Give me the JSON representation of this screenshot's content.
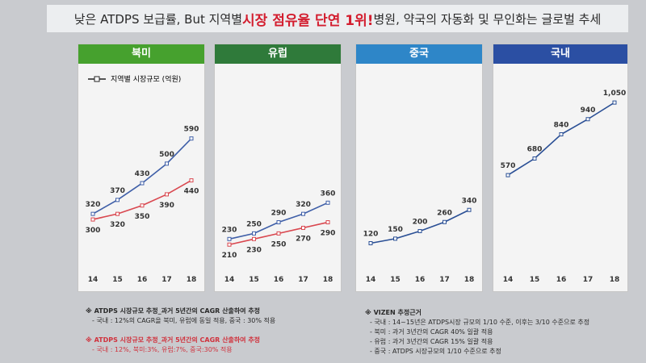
{
  "headline": {
    "pre": "낮은 ATDPS 보급률, But 지역별 ",
    "highlight": "시장 점유율 단연 1위!",
    "post": "병원, 약국의 자동화 및 무인화는 글로벌 추세"
  },
  "legend": {
    "label": "지역별 시장규모 (억원)"
  },
  "colors": {
    "blue_series": "#3f5fa8",
    "red_series": "#d9474f"
  },
  "chart_data": [
    {
      "type": "line",
      "title": "북미",
      "header_color": "#46a12e",
      "categories": [
        "14",
        "15",
        "16",
        "17",
        "18"
      ],
      "series": [
        {
          "values": [
            320,
            370,
            430,
            500,
            590
          ],
          "color": "#3f5fa8"
        },
        {
          "values": [
            300,
            320,
            350,
            390,
            440
          ],
          "color": "#d9474f"
        }
      ],
      "ylim": [
        150,
        800
      ],
      "grid": false
    },
    {
      "type": "line",
      "title": "유럽",
      "header_color": "#2f7a3a",
      "categories": [
        "14",
        "15",
        "16",
        "17",
        "18"
      ],
      "series": [
        {
          "values": [
            230,
            250,
            290,
            320,
            360
          ],
          "color": "#3f5fa8"
        },
        {
          "values": [
            210,
            230,
            250,
            270,
            290
          ],
          "color": "#d9474f"
        }
      ],
      "ylim": [
        150,
        800
      ],
      "grid": false
    },
    {
      "type": "line",
      "title": "중국",
      "header_color": "#2e86c8",
      "categories": [
        "14",
        "15",
        "16",
        "17",
        "18"
      ],
      "series": [
        {
          "values": [
            120,
            150,
            200,
            260,
            340
          ],
          "color": "#2a4f95"
        }
      ],
      "ylim": [
        0,
        1200
      ],
      "grid": false
    },
    {
      "type": "line",
      "title": "국내",
      "header_color": "#2b4fa3",
      "categories": [
        "14",
        "15",
        "16",
        "17",
        "18"
      ],
      "series": [
        {
          "values": [
            570,
            680,
            840,
            940,
            1050
          ],
          "color": "#2a4f95"
        }
      ],
      "ylim": [
        0,
        1200
      ],
      "grid": false
    }
  ],
  "notes_left_1": {
    "title": "※ ATDPS 시장규모 추정_과거 5년간의 CAGR 산출하여 추정",
    "line": "- 국내 : 12%의 CAGR을 북미, 유럽에 동일 적용, 중국 : 30% 적용"
  },
  "notes_left_2": {
    "title": "※ ATDPS 시장규모 추정_과거 5년간의 CAGR 산출하여 추정",
    "line": "- 국내 : 12%, 북미:3%, 유럽:7%, 중국:30% 적용"
  },
  "notes_right": {
    "title": "※ VIZEN 추정근거",
    "lines": [
      "- 국내 : 14~15년은 ATDPS시장 규모의 1/10 수준, 이후는 3/10 수준으로 추정",
      "- 북미 : 과거 3년간의 CAGR 40% 일괄 적용",
      "- 유럽 : 과거 3년간의 CAGR 15% 일괄 적용",
      "- 중국 : ATDPS 시장규모의 1/10 수준으로 추정"
    ]
  }
}
